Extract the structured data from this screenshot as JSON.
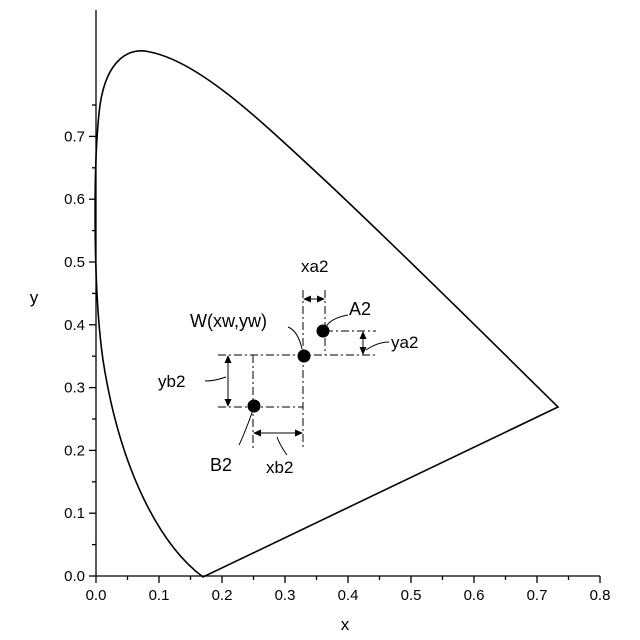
{
  "axes": {
    "x_title": "x",
    "y_title": "y",
    "x_ticks": [
      "0.0",
      "0.1",
      "0.2",
      "0.3",
      "0.4",
      "0.5",
      "0.6",
      "0.7",
      "0.8"
    ],
    "y_ticks": [
      "0.0",
      "0.1",
      "0.2",
      "0.3",
      "0.4",
      "0.5",
      "0.6",
      "0.7"
    ],
    "xlim": [
      0,
      0.8
    ],
    "ylim": [
      0,
      0.8
    ]
  },
  "points": [
    {
      "id": "white",
      "label": "W(xw,yw)",
      "x": 0.33,
      "y": 0.35
    },
    {
      "id": "a2",
      "label": "A2",
      "x": 0.36,
      "y": 0.39
    },
    {
      "id": "b2",
      "label": "B2",
      "x": 0.25,
      "y": 0.27
    }
  ],
  "dimensions": {
    "xa2": "xa2",
    "ya2": "ya2",
    "xb2": "xb2",
    "yb2": "yb2"
  },
  "colors": {
    "ink": "#000000",
    "background": "#ffffff"
  }
}
